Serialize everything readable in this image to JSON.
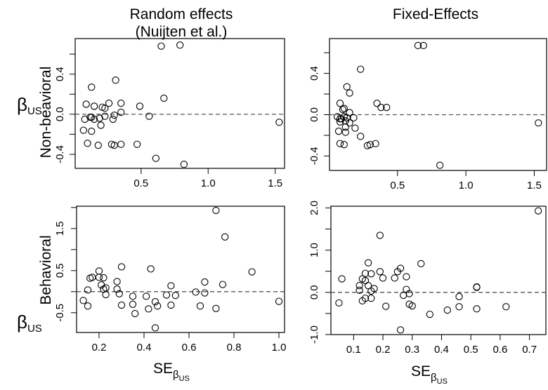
{
  "column_titles": [
    "Random effects",
    "(Nuijten et al.)",
    "Fixed-Effects"
  ],
  "row_labels": {
    "non_behavioral": "Non-beavioral",
    "behavioral": "Behavioral"
  },
  "y_symbol": {
    "main": "β",
    "sub": "US"
  },
  "x_label": {
    "main": "SE",
    "sub": "β",
    "subsub": "US"
  },
  "chart_data": [
    {
      "type": "scatter",
      "title": "Random effects (Nuijten et al.) - Non-beavioral",
      "xlabel": "SE_βUS",
      "ylabel": "β_US",
      "xlim": [
        0.008,
        1.57
      ],
      "ylim": [
        -0.54,
        0.755
      ],
      "xticks": [
        0.5,
        1.0,
        1.5
      ],
      "xtick_labels": [
        "0.5",
        "1.0",
        "1.5"
      ],
      "yticks": [
        -0.4,
        -0.2,
        0.0,
        0.2,
        0.4,
        0.6
      ],
      "ytick_labels": [
        "-0.4",
        "",
        "0.0",
        "",
        "0.4",
        ""
      ],
      "reference_line": 0,
      "points": [
        [
          0.65,
          0.68
        ],
        [
          0.79,
          0.69
        ],
        [
          0.31,
          0.34
        ],
        [
          0.13,
          0.27
        ],
        [
          0.67,
          0.16
        ],
        [
          0.09,
          0.1
        ],
        [
          0.15,
          0.08
        ],
        [
          0.26,
          0.11
        ],
        [
          0.35,
          0.11
        ],
        [
          0.21,
          0.07
        ],
        [
          0.23,
          0.06
        ],
        [
          0.49,
          0.08
        ],
        [
          0.35,
          0.02
        ],
        [
          0.3,
          -0.01
        ],
        [
          0.23,
          -0.02
        ],
        [
          0.29,
          -0.05
        ],
        [
          0.19,
          -0.04
        ],
        [
          0.08,
          -0.05
        ],
        [
          0.12,
          -0.03
        ],
        [
          0.13,
          -0.03
        ],
        [
          0.15,
          -0.05
        ],
        [
          0.56,
          -0.02
        ],
        [
          0.2,
          -0.11
        ],
        [
          0.07,
          -0.16
        ],
        [
          0.13,
          -0.17
        ],
        [
          0.1,
          -0.29
        ],
        [
          0.18,
          -0.31
        ],
        [
          0.28,
          -0.3
        ],
        [
          0.3,
          -0.31
        ],
        [
          0.35,
          -0.3
        ],
        [
          0.47,
          -0.3
        ],
        [
          0.61,
          -0.44
        ],
        [
          0.82,
          -0.5
        ],
        [
          1.53,
          -0.08
        ]
      ]
    },
    {
      "type": "scatter",
      "title": "Fixed-Effects - Non-beavioral",
      "xlabel": "SE_βUS",
      "ylabel": "β_US",
      "xlim": [
        0.003,
        1.59
      ],
      "ylim": [
        -0.54,
        0.737
      ],
      "xticks": [
        0.5,
        1.0,
        1.5
      ],
      "xtick_labels": [
        "0.5",
        "1.0",
        "1.5"
      ],
      "yticks": [
        -0.4,
        -0.2,
        0.0,
        0.2,
        0.4,
        0.6
      ],
      "ytick_labels": [
        "-0.4",
        "",
        "0.0",
        "",
        "0.4",
        ""
      ],
      "reference_line": 0,
      "points": [
        [
          0.65,
          0.67
        ],
        [
          0.69,
          0.67
        ],
        [
          0.23,
          0.44
        ],
        [
          0.13,
          0.27
        ],
        [
          0.15,
          0.21
        ],
        [
          0.08,
          0.11
        ],
        [
          0.35,
          0.11
        ],
        [
          0.38,
          0.07
        ],
        [
          0.42,
          0.07
        ],
        [
          0.11,
          0.06
        ],
        [
          0.1,
          0.05
        ],
        [
          0.15,
          0.02
        ],
        [
          0.06,
          -0.02
        ],
        [
          0.08,
          -0.04
        ],
        [
          0.09,
          -0.04
        ],
        [
          0.11,
          -0.02
        ],
        [
          0.13,
          -0.03
        ],
        [
          0.12,
          -0.06
        ],
        [
          0.08,
          -0.07
        ],
        [
          0.18,
          -0.03
        ],
        [
          0.15,
          -0.08
        ],
        [
          0.12,
          -0.12
        ],
        [
          0.19,
          -0.13
        ],
        [
          0.07,
          -0.16
        ],
        [
          0.12,
          -0.17
        ],
        [
          0.23,
          -0.21
        ],
        [
          0.08,
          -0.28
        ],
        [
          0.11,
          -0.29
        ],
        [
          0.28,
          -0.3
        ],
        [
          0.3,
          -0.29
        ],
        [
          0.34,
          -0.28
        ],
        [
          0.81,
          -0.49
        ],
        [
          1.53,
          -0.08
        ]
      ]
    },
    {
      "type": "scatter",
      "title": "Random effects (Nuijten et al.) - Behavioral",
      "xlabel": "SE_βUS",
      "ylabel": "β_US",
      "xlim": [
        0.1,
        1.025
      ],
      "ylim": [
        -0.97,
        2.03
      ],
      "xticks": [
        0.2,
        0.4,
        0.6,
        0.8,
        1.0
      ],
      "xtick_labels": [
        "0.2",
        "0.4",
        "0.6",
        "0.8",
        "1.0"
      ],
      "yticks": [
        -0.5,
        0.0,
        0.5,
        1.0,
        1.5,
        2.0
      ],
      "ytick_labels": [
        "-0.5",
        "",
        "0.5",
        "",
        "1.5",
        ""
      ],
      "reference_line": 0,
      "points": [
        [
          0.72,
          1.93
        ],
        [
          0.76,
          1.3
        ],
        [
          0.88,
          0.47
        ],
        [
          0.3,
          0.59
        ],
        [
          0.43,
          0.54
        ],
        [
          0.2,
          0.49
        ],
        [
          0.16,
          0.32
        ],
        [
          0.17,
          0.34
        ],
        [
          0.2,
          0.34
        ],
        [
          0.22,
          0.33
        ],
        [
          0.28,
          0.24
        ],
        [
          0.21,
          0.16
        ],
        [
          0.23,
          0.09
        ],
        [
          0.22,
          0.06
        ],
        [
          0.28,
          0.06
        ],
        [
          0.15,
          0.04
        ],
        [
          0.23,
          -0.07
        ],
        [
          0.29,
          -0.05
        ],
        [
          0.52,
          0.14
        ],
        [
          0.67,
          0.23
        ],
        [
          0.75,
          0.17
        ],
        [
          0.63,
          -0.01
        ],
        [
          0.67,
          -0.03
        ],
        [
          0.35,
          -0.11
        ],
        [
          0.41,
          -0.11
        ],
        [
          0.5,
          -0.08
        ],
        [
          0.54,
          -0.09
        ],
        [
          0.13,
          -0.21
        ],
        [
          0.15,
          -0.34
        ],
        [
          0.3,
          -0.32
        ],
        [
          0.35,
          -0.3
        ],
        [
          0.45,
          -0.24
        ],
        [
          0.46,
          -0.34
        ],
        [
          0.52,
          -0.32
        ],
        [
          0.42,
          -0.41
        ],
        [
          0.36,
          -0.52
        ],
        [
          0.65,
          -0.34
        ],
        [
          0.72,
          -0.4
        ],
        [
          0.45,
          -0.86
        ],
        [
          1.0,
          -0.23
        ]
      ]
    },
    {
      "type": "scatter",
      "title": "Fixed-Effects - Behavioral",
      "xlabel": "SE_βUS",
      "ylabel": "β_US",
      "xlim": [
        0.0226,
        0.756
      ],
      "ylim": [
        -1.0,
        2.04
      ],
      "xticks": [
        0.1,
        0.2,
        0.3,
        0.4,
        0.5,
        0.6,
        0.7
      ],
      "xtick_labels": [
        "0.1",
        "0.2",
        "0.3",
        "0.4",
        "0.5",
        "0.6",
        "0.7"
      ],
      "yticks": [
        -1.0,
        -0.5,
        0.0,
        0.5,
        1.0,
        1.5,
        2.0
      ],
      "ytick_labels": [
        "-1.0",
        "",
        "0.0",
        "",
        "1.0",
        "",
        "2.0"
      ],
      "reference_line": 0,
      "points": [
        [
          0.73,
          1.93
        ],
        [
          0.19,
          1.35
        ],
        [
          0.15,
          0.7
        ],
        [
          0.33,
          0.68
        ],
        [
          0.26,
          0.57
        ],
        [
          0.25,
          0.49
        ],
        [
          0.19,
          0.49
        ],
        [
          0.14,
          0.45
        ],
        [
          0.16,
          0.44
        ],
        [
          0.06,
          0.32
        ],
        [
          0.13,
          0.32
        ],
        [
          0.2,
          0.34
        ],
        [
          0.24,
          0.34
        ],
        [
          0.28,
          0.37
        ],
        [
          0.14,
          0.28
        ],
        [
          0.12,
          0.16
        ],
        [
          0.15,
          0.16
        ],
        [
          0.12,
          0.05
        ],
        [
          0.17,
          0.09
        ],
        [
          0.16,
          0.03
        ],
        [
          0.28,
          0.07
        ],
        [
          0.29,
          -0.03
        ],
        [
          0.27,
          -0.07
        ],
        [
          0.52,
          0.13
        ],
        [
          0.52,
          0.12
        ],
        [
          0.46,
          -0.1
        ],
        [
          0.14,
          -0.14
        ],
        [
          0.13,
          -0.2
        ],
        [
          0.16,
          -0.14
        ],
        [
          0.05,
          -0.25
        ],
        [
          0.21,
          -0.33
        ],
        [
          0.29,
          -0.28
        ],
        [
          0.3,
          -0.32
        ],
        [
          0.46,
          -0.34
        ],
        [
          0.42,
          -0.42
        ],
        [
          0.52,
          -0.39
        ],
        [
          0.62,
          -0.34
        ],
        [
          0.36,
          -0.52
        ],
        [
          0.26,
          -0.89
        ]
      ]
    }
  ]
}
